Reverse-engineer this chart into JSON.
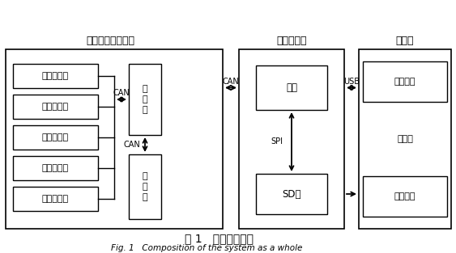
{
  "title_cn": "图 1   系统整体构成",
  "title_en": "Fig. 1   Composition of the system as a whole",
  "bg_color": "#ffffff",
  "box_edge": "#000000",
  "system_label": "车载钻机电控系统",
  "sensors": [
    "发动机参数",
    "压力传感器",
    "倾角传感器",
    "温度传感器",
    "液位传感器"
  ],
  "controller_label": "控\n制\n器",
  "display_label": "显\n示\n器",
  "recorder_label": "数据记录仪",
  "mainboard_label": "主板",
  "sdcard_label": "SD卡",
  "computer_label": "计算机",
  "param_label": "参数配置",
  "upper_label": "上位机",
  "dataproc_label": "数据处理",
  "can1_label": "CAN",
  "can2_label": "CAN",
  "can3_label": "CAN",
  "usb_label": "USB",
  "spi_label": "SPI"
}
